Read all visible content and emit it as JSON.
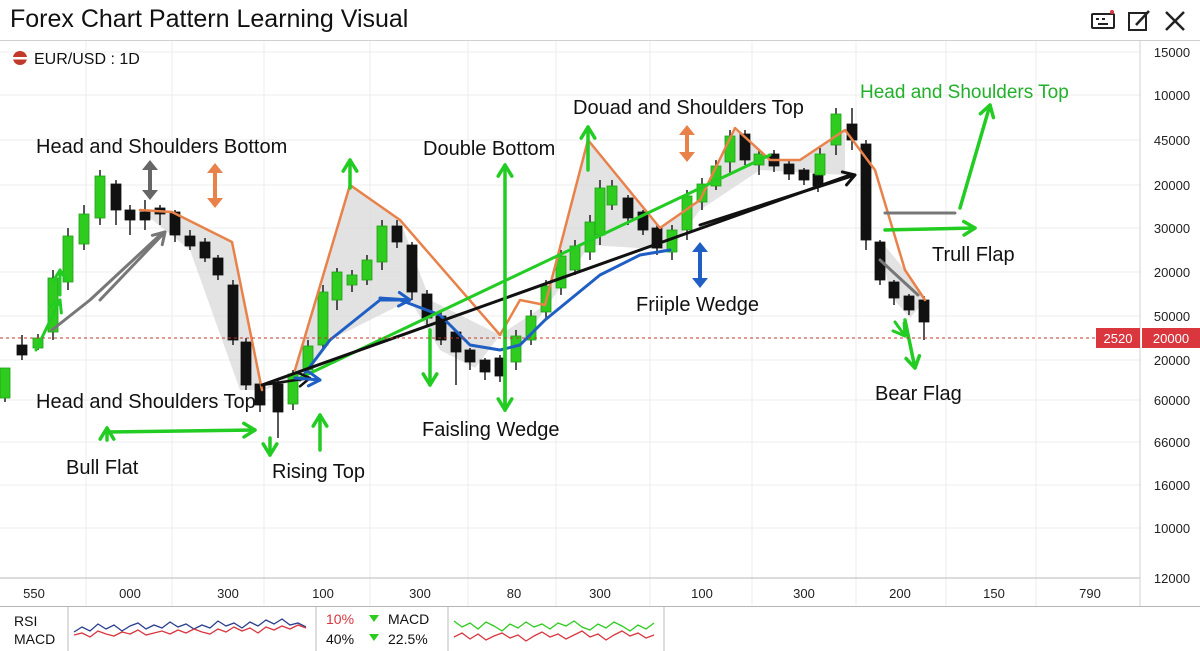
{
  "window": {
    "title": "Forex Chart Pattern Learning Visual",
    "icons": [
      "keyboard-icon",
      "edit-icon",
      "close-icon"
    ]
  },
  "chart_data": {
    "type": "candlestick",
    "symbol": "EUR/USD : 1D",
    "right_axis_labels": [
      "15000",
      "10000",
      "45000",
      "20000",
      "30000",
      "20000",
      "50000",
      "20000",
      "60000",
      "66000",
      "16000",
      "10000",
      "12000"
    ],
    "x_tick_labels": [
      "550",
      "000",
      "300",
      "100",
      "300",
      "80",
      "300",
      "100",
      "300",
      "200",
      "150",
      "790"
    ],
    "price_tag": {
      "left": "2520",
      "right": "20000"
    },
    "candles_visual": [
      [
        16,
        null,
        382,
        402,
        398,
        368
      ],
      [
        -1,
        22,
        335,
        360,
        355,
        345
      ],
      [
        1,
        38,
        334,
        350,
        348,
        338
      ],
      [
        1,
        53,
        270,
        340,
        332,
        278
      ],
      [
        1,
        68,
        228,
        290,
        282,
        236
      ],
      [
        1,
        84,
        205,
        250,
        244,
        214
      ],
      [
        1,
        100,
        170,
        225,
        218,
        176
      ],
      [
        -1,
        116,
        180,
        225,
        184,
        210
      ],
      [
        -1,
        130,
        205,
        235,
        210,
        220
      ],
      [
        -1,
        145,
        200,
        230,
        212,
        220
      ],
      [
        -1,
        160,
        205,
        225,
        208,
        214
      ],
      [
        -1,
        175,
        210,
        242,
        212,
        235
      ],
      [
        -1,
        190,
        230,
        250,
        236,
        246
      ],
      [
        -1,
        205,
        238,
        262,
        242,
        258
      ],
      [
        -1,
        218,
        255,
        280,
        258,
        275
      ],
      [
        -1,
        233,
        280,
        345,
        285,
        340
      ],
      [
        -1,
        246,
        338,
        390,
        342,
        385
      ],
      [
        -1,
        260,
        380,
        412,
        384,
        405
      ],
      [
        -1,
        278,
        380,
        438,
        384,
        412
      ],
      [
        1,
        293,
        370,
        410,
        404,
        374
      ],
      [
        1,
        308,
        340,
        375,
        370,
        346
      ],
      [
        1,
        323,
        285,
        350,
        345,
        292
      ],
      [
        1,
        337,
        268,
        310,
        300,
        272
      ],
      [
        1,
        352,
        270,
        292,
        285,
        275
      ],
      [
        1,
        367,
        255,
        285,
        280,
        260
      ],
      [
        1,
        382,
        220,
        270,
        262,
        226
      ],
      [
        -1,
        397,
        220,
        248,
        226,
        242
      ],
      [
        -1,
        412,
        242,
        300,
        245,
        292
      ],
      [
        -1,
        427,
        290,
        325,
        294,
        318
      ],
      [
        -1,
        441,
        310,
        345,
        316,
        340
      ],
      [
        -1,
        456,
        330,
        385,
        332,
        352
      ],
      [
        -1,
        470,
        348,
        370,
        350,
        362
      ],
      [
        -1,
        485,
        358,
        380,
        360,
        372
      ],
      [
        -1,
        500,
        355,
        382,
        358,
        376
      ],
      [
        1,
        516,
        330,
        370,
        362,
        336
      ],
      [
        1,
        531,
        310,
        345,
        340,
        316
      ],
      [
        1,
        546,
        280,
        320,
        312,
        286
      ],
      [
        1,
        561,
        250,
        295,
        288,
        256
      ],
      [
        1,
        575,
        240,
        275,
        270,
        246
      ],
      [
        1,
        590,
        215,
        260,
        252,
        222
      ],
      [
        1,
        600,
        180,
        245,
        235,
        188
      ],
      [
        1,
        612,
        180,
        210,
        205,
        186
      ],
      [
        -1,
        628,
        195,
        225,
        198,
        218
      ],
      [
        -1,
        643,
        210,
        235,
        212,
        230
      ],
      [
        -1,
        657,
        225,
        255,
        228,
        248
      ],
      [
        1,
        672,
        225,
        260,
        252,
        230
      ],
      [
        1,
        687,
        190,
        240,
        230,
        196
      ],
      [
        1,
        702,
        178,
        210,
        202,
        184
      ],
      [
        1,
        716,
        160,
        190,
        186,
        166
      ],
      [
        1,
        730,
        130,
        175,
        162,
        136
      ],
      [
        -1,
        745,
        130,
        165,
        134,
        160
      ],
      [
        1,
        759,
        150,
        175,
        165,
        154
      ],
      [
        -1,
        774,
        150,
        172,
        154,
        166
      ],
      [
        -1,
        789,
        160,
        180,
        164,
        174
      ],
      [
        -1,
        804,
        168,
        185,
        170,
        180
      ],
      [
        -1,
        818,
        172,
        192,
        174,
        186
      ],
      [
        1,
        820,
        148,
        180,
        175,
        154
      ],
      [
        1,
        836,
        108,
        155,
        145,
        114
      ],
      [
        -1,
        852,
        108,
        150,
        124,
        140
      ],
      [
        -1,
        866,
        140,
        250,
        144,
        240
      ],
      [
        -1,
        880,
        240,
        285,
        242,
        280
      ],
      [
        -1,
        894,
        280,
        305,
        282,
        298
      ],
      [
        -1,
        909,
        294,
        315,
        296,
        310
      ],
      [
        -1,
        924,
        296,
        340,
        300,
        322
      ]
    ],
    "annotations": [
      "Head and Shoulders Bottom",
      "Head and Shoulders Top",
      "Bull Flat",
      "Rising Top",
      "Double Bottom",
      "Faisling Wedge",
      "Douad and Shoulders Top",
      "Friiple Wedge",
      "Head and Shoulders Top",
      "Trull Flap",
      "Bear Flag"
    ],
    "colors": {
      "bull": "#2ecc1f",
      "bear": "#111111",
      "orange": "#e8824a",
      "green": "#22cc22",
      "blue": "#1f5fc4",
      "gray": "#777777",
      "price_tag": "#d9363e",
      "fill": "#dcdcdc"
    }
  },
  "indicators": {
    "rsi_label": "RSI",
    "macd_label": "MACD",
    "rsi_value": "10%",
    "rsi_value2": "40%",
    "macd_name": "MACD",
    "macd_value": "22.5%"
  }
}
